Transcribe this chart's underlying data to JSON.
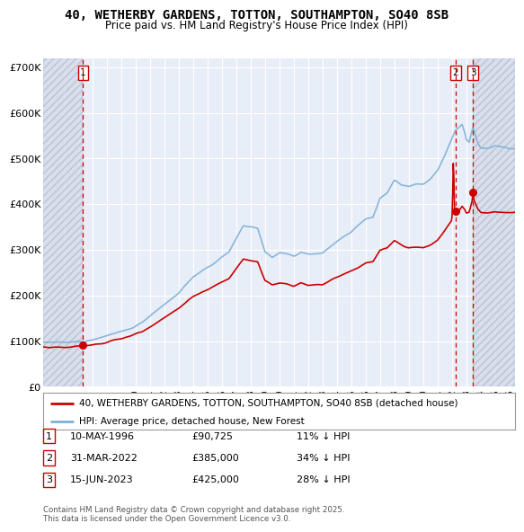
{
  "title": "40, WETHERBY GARDENS, TOTTON, SOUTHAMPTON, SO40 8SB",
  "subtitle": "Price paid vs. HM Land Registry's House Price Index (HPI)",
  "ylabel_ticks": [
    "£0",
    "£100K",
    "£200K",
    "£300K",
    "£400K",
    "£500K",
    "£600K",
    "£700K"
  ],
  "ytick_values": [
    0,
    100000,
    200000,
    300000,
    400000,
    500000,
    600000,
    700000
  ],
  "ylim": [
    0,
    720000
  ],
  "xlim_start": 1993.6,
  "xlim_end": 2026.4,
  "sale_dates": [
    1996.36,
    2022.25,
    2023.46
  ],
  "sale_prices": [
    90725,
    385000,
    425000
  ],
  "sale_labels": [
    "1",
    "2",
    "3"
  ],
  "sale_date_strs": [
    "10-MAY-1996",
    "31-MAR-2022",
    "15-JUN-2023"
  ],
  "sale_price_strs": [
    "£90,725",
    "£385,000",
    "£425,000"
  ],
  "sale_hpi_strs": [
    "11% ↓ HPI",
    "34% ↓ HPI",
    "28% ↓ HPI"
  ],
  "legend_red": "40, WETHERBY GARDENS, TOTTON, SOUTHAMPTON, SO40 8SB (detached house)",
  "legend_blue": "HPI: Average price, detached house, New Forest",
  "footer": "Contains HM Land Registry data © Crown copyright and database right 2025.\nThis data is licensed under the Open Government Licence v3.0.",
  "bg_color": "#ffffff",
  "plot_bg_color": "#e8eef8",
  "grid_color": "#ffffff",
  "red_line_color": "#cc0000",
  "blue_line_color": "#7fb0d8",
  "vline_color": "#cc0000",
  "xtick_years": [
    1994,
    1995,
    1996,
    1997,
    1998,
    1999,
    2000,
    2001,
    2002,
    2003,
    2004,
    2005,
    2006,
    2007,
    2008,
    2009,
    2010,
    2011,
    2012,
    2013,
    2014,
    2015,
    2016,
    2017,
    2018,
    2019,
    2020,
    2021,
    2022,
    2023,
    2024,
    2025,
    2026
  ],
  "hpi_discount": [
    0.11,
    0.34,
    0.28
  ]
}
